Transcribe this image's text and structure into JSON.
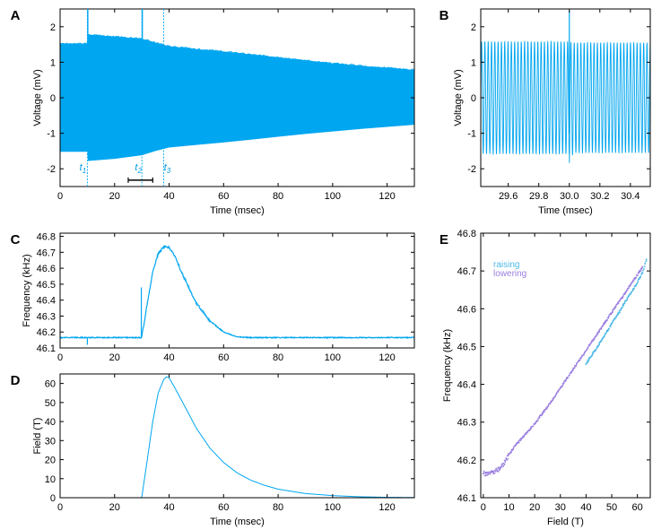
{
  "chart_data": [
    {
      "panel": "A",
      "type": "line",
      "xlabel": "Time (msec)",
      "ylabel": "Voltage (mV)",
      "xlim": [
        0,
        130
      ],
      "ylim": [
        -2.5,
        2.5
      ],
      "xticks": [
        0,
        20,
        40,
        60,
        80,
        100,
        120
      ],
      "yticks": [
        -2,
        -1,
        0,
        1,
        2
      ],
      "color": "#00a6f0",
      "envelope": {
        "x": [
          0,
          10,
          10.2,
          20,
          30,
          35,
          40,
          50,
          60,
          70,
          80,
          90,
          100,
          110,
          120,
          130
        ],
        "upper": [
          1.52,
          1.52,
          1.78,
          1.72,
          1.66,
          1.55,
          1.45,
          1.37,
          1.3,
          1.22,
          1.14,
          1.05,
          0.97,
          0.9,
          0.84,
          0.78
        ],
        "lower": [
          -1.52,
          -1.52,
          -1.78,
          -1.72,
          -1.62,
          -1.5,
          -1.4,
          -1.33,
          -1.26,
          -1.18,
          -1.1,
          -1.02,
          -0.95,
          -0.88,
          -0.82,
          -0.76
        ]
      },
      "markers": [
        {
          "label": "t",
          "sub": "1",
          "x": 10,
          "spike": true
        },
        {
          "label": "t",
          "sub": "2",
          "x": 30,
          "spike": true
        },
        {
          "label": "t",
          "sub": "3",
          "x": 38,
          "spike": false
        }
      ],
      "scalebar": {
        "x": [
          25,
          34
        ],
        "y": -2.32
      }
    },
    {
      "panel": "B",
      "type": "line",
      "xlabel": "Time (msec)",
      "ylabel": "Voltage (mV)",
      "xlim": [
        29.42,
        30.53
      ],
      "ylim": [
        -2.5,
        2.5
      ],
      "xticks": [
        29.6,
        29.8,
        30.0,
        30.2,
        30.4
      ],
      "xticklabels": [
        "29.6",
        "29.8",
        "30.0",
        "30.2",
        "30.4"
      ],
      "yticks": [
        -2,
        -1,
        0,
        1,
        2
      ],
      "color": "#00a6f0",
      "oscillation": {
        "frequency_khz": 46.16,
        "amplitude": 1.58,
        "amplitude_after": 1.55
      },
      "spike": {
        "x": 30.0,
        "ymax": 2.45,
        "ymin": -1.95
      }
    },
    {
      "panel": "C",
      "type": "line",
      "xlabel": "",
      "ylabel": "Frequency (kHz)",
      "xlim": [
        0,
        130
      ],
      "ylim": [
        46.1,
        46.82
      ],
      "xticks": [
        0,
        20,
        40,
        60,
        80,
        100,
        120
      ],
      "yticks": [
        46.1,
        46.2,
        46.3,
        46.4,
        46.5,
        46.6,
        46.7,
        46.8
      ],
      "yticklabels": [
        "46.1",
        "46.2",
        "46.3",
        "46.4",
        "46.5",
        "46.6",
        "46.7",
        "46.8"
      ],
      "color": "#00a6f0",
      "x": [
        0,
        29.8,
        30,
        32,
        34,
        36,
        38,
        39,
        40,
        42,
        45,
        50,
        55,
        60,
        65,
        70,
        80,
        100,
        130
      ],
      "y": [
        46.165,
        46.165,
        46.17,
        46.38,
        46.58,
        46.69,
        46.735,
        46.738,
        46.73,
        46.68,
        46.56,
        46.38,
        46.27,
        46.2,
        46.17,
        46.165,
        46.165,
        46.165,
        46.165
      ],
      "spikes": [
        {
          "x": 10,
          "ymin": 46.12,
          "ymax": 46.165
        },
        {
          "x": 29.8,
          "ymin": 46.165,
          "ymax": 46.48
        },
        {
          "x": 130,
          "ymin": 46.14,
          "ymax": 46.2
        }
      ]
    },
    {
      "panel": "D",
      "type": "line",
      "xlabel": "Time (msec)",
      "ylabel": "Field (T)",
      "xlim": [
        0,
        130
      ],
      "ylim": [
        0,
        65
      ],
      "xticks": [
        0,
        20,
        40,
        60,
        80,
        100,
        120
      ],
      "yticks": [
        0,
        10,
        20,
        30,
        40,
        50,
        60
      ],
      "color": "#00a6f0",
      "x": [
        0,
        29.8,
        30,
        32,
        34,
        36,
        38,
        39,
        40,
        42,
        45,
        50,
        55,
        60,
        65,
        70,
        75,
        80,
        90,
        100,
        110,
        120,
        130
      ],
      "y": [
        0,
        0,
        0.5,
        20,
        40,
        55,
        62,
        63.5,
        63,
        58,
        50,
        36.5,
        26,
        18.5,
        13,
        9.2,
        6.5,
        4.5,
        2.2,
        1.1,
        0.5,
        0.2,
        0.1
      ]
    },
    {
      "panel": "E",
      "type": "scatter",
      "xlabel": "Field (T)",
      "ylabel": "Frequency (kHz)",
      "xlim": [
        -1,
        65
      ],
      "ylim": [
        46.1,
        46.8
      ],
      "xticks": [
        0,
        10,
        20,
        30,
        40,
        50,
        60
      ],
      "yticks": [
        46.1,
        46.2,
        46.3,
        46.4,
        46.5,
        46.6,
        46.7,
        46.8
      ],
      "yticklabels": [
        "46.1",
        "46.2",
        "46.3",
        "46.4",
        "46.5",
        "46.6",
        "46.7",
        "46.8"
      ],
      "legend_position": "top-left",
      "series": [
        {
          "name": "raising",
          "color": "#4cb8e6",
          "x": [
            40,
            45,
            50,
            55,
            60,
            62,
            63.5
          ],
          "y": [
            46.455,
            46.505,
            46.56,
            46.615,
            46.67,
            46.695,
            46.73
          ]
        },
        {
          "name": "lowering",
          "color": "#9b7fe0",
          "x": [
            0,
            2,
            4,
            6,
            8,
            10,
            12,
            14,
            16,
            18,
            20,
            22,
            25,
            30,
            35,
            40,
            45,
            50,
            55,
            60,
            62
          ],
          "y": [
            46.165,
            46.163,
            46.168,
            46.175,
            46.19,
            46.215,
            46.235,
            46.25,
            46.265,
            46.28,
            46.295,
            46.315,
            46.34,
            46.39,
            46.44,
            46.49,
            46.54,
            46.59,
            46.64,
            46.69,
            46.71
          ]
        }
      ]
    }
  ]
}
